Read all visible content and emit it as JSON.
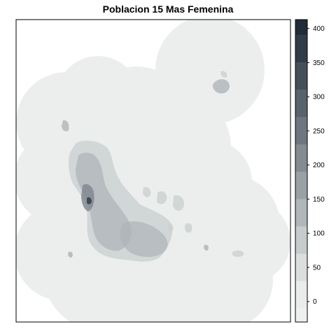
{
  "title": "Poblacion 15 Mas Femenina",
  "legend": {
    "min": -30,
    "max": 413,
    "ticks": [
      0,
      50,
      100,
      150,
      200,
      250,
      300,
      350,
      400
    ],
    "tick_labels": [
      "0",
      "50",
      "100",
      "150",
      "200",
      "250",
      "300",
      "350",
      "400"
    ],
    "bins": [
      {
        "from": -30,
        "to": -10,
        "color": "#eef0ef"
      },
      {
        "from": -10,
        "to": 30,
        "color": "#e9ecea"
      },
      {
        "from": 30,
        "to": 70,
        "color": "#dadedd"
      },
      {
        "from": 70,
        "to": 110,
        "color": "#c6cbcc"
      },
      {
        "from": 110,
        "to": 150,
        "color": "#b0b6b9"
      },
      {
        "from": 150,
        "to": 190,
        "color": "#9aa1a5"
      },
      {
        "from": 190,
        "to": 230,
        "color": "#848c92"
      },
      {
        "from": 230,
        "to": 270,
        "color": "#6e777f"
      },
      {
        "from": 270,
        "to": 310,
        "color": "#59636c"
      },
      {
        "from": 310,
        "to": 350,
        "color": "#454f5a"
      },
      {
        "from": 350,
        "to": 390,
        "color": "#323c48"
      },
      {
        "from": 390,
        "to": 413,
        "color": "#222c38"
      }
    ]
  },
  "colors": {
    "background_fill": "#eceeed",
    "urban_light": "#cdd1d2",
    "urban_mid": "#aeb4b8",
    "urban_dark": "#7d858d",
    "urban_darkest": "#39434f"
  }
}
